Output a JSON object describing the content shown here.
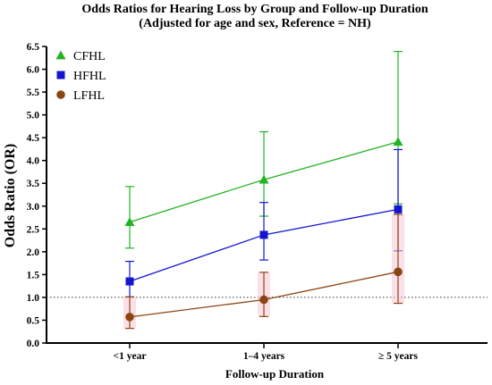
{
  "chart_data": {
    "type": "line",
    "title": "Odds Ratios for Hearing Loss by Group and Follow-up Duration",
    "subtitle": "(Adjusted for age and sex, Reference = NH)",
    "xlabel": "Follow-up Duration",
    "ylabel": "Odds Ratio (OR)",
    "categories": [
      "<1 year",
      "1–4 years",
      "≥ 5 years"
    ],
    "ylim": [
      0.0,
      6.5
    ],
    "yticks": [
      "0.0",
      "0.5",
      "1.0",
      "1.5",
      "2.0",
      "2.5",
      "3.0",
      "3.5",
      "4.0",
      "4.5",
      "5.0",
      "5.5",
      "6.0",
      "6.5"
    ],
    "reference_line": 1.0,
    "reference_line_style": "dotted",
    "grid": false,
    "legend_position": "top-left",
    "series": [
      {
        "name": "CFHL",
        "color": "#22b422",
        "marker": "triangle",
        "values": [
          2.65,
          3.58,
          4.41
        ],
        "ci_low": [
          2.08,
          2.78,
          3.05
        ],
        "ci_high": [
          3.43,
          4.63,
          6.39
        ]
      },
      {
        "name": "HFHL",
        "color": "#1515d0",
        "marker": "square",
        "values": [
          1.35,
          2.37,
          2.93
        ],
        "ci_low": [
          1.01,
          1.82,
          2.02
        ],
        "ci_high": [
          1.79,
          3.08,
          4.24
        ]
      },
      {
        "name": "LFHL",
        "color": "#8b4513",
        "marker": "circle",
        "values": [
          0.57,
          0.95,
          1.56
        ],
        "ci_low": [
          0.32,
          0.58,
          0.87
        ],
        "ci_high": [
          1.01,
          1.55,
          2.82
        ]
      }
    ]
  }
}
